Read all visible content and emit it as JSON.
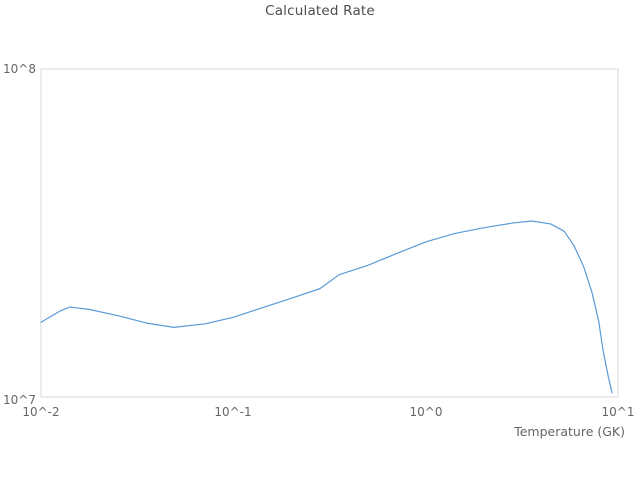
{
  "title": "Calculated Rate",
  "colors": {
    "line": "#5a9ad8",
    "plot_border": "#d9d9d9",
    "title_text": "#4d4d4d",
    "tick_text": "#666666",
    "background": "#ffffff"
  },
  "y_axis": {
    "ticks": [
      "10^8",
      "10^7"
    ]
  },
  "x_axis": {
    "label": "Temperature (GK)",
    "ticks": [
      "10^-2",
      "10^-1",
      "10^0",
      "10^1"
    ]
  },
  "chart_data": {
    "type": "line",
    "title": "Calculated Rate",
    "xlabel": "Temperature (GK)",
    "ylabel": "",
    "x_scale": "log",
    "y_scale": "log",
    "xlim": [
      0.01,
      10
    ],
    "ylim": [
      10000000,
      100000000
    ],
    "grid": false,
    "legend": false,
    "series": [
      {
        "name": "Calculated Rate",
        "x": [
          0.01,
          0.0126,
          0.0141,
          0.0178,
          0.0251,
          0.0355,
          0.049,
          0.0708,
          0.1,
          0.141,
          0.2,
          0.282,
          0.355,
          0.501,
          0.708,
          1.0,
          1.41,
          2.0,
          2.82,
          3.55,
          4.47,
          5.25,
          5.89,
          6.61,
          7.33,
          7.94,
          8.36,
          8.91,
          9.31
        ],
        "y": [
          16900000,
          18300000,
          18800000,
          18500000,
          17700000,
          16800000,
          16300000,
          16700000,
          17500000,
          18700000,
          20000000,
          21400000,
          23600000,
          25200000,
          27400000,
          29700000,
          31500000,
          32800000,
          33900000,
          34400000,
          33700000,
          32000000,
          29000000,
          25100000,
          20800000,
          17000000,
          13900000,
          11500000,
          10300000
        ]
      }
    ]
  }
}
